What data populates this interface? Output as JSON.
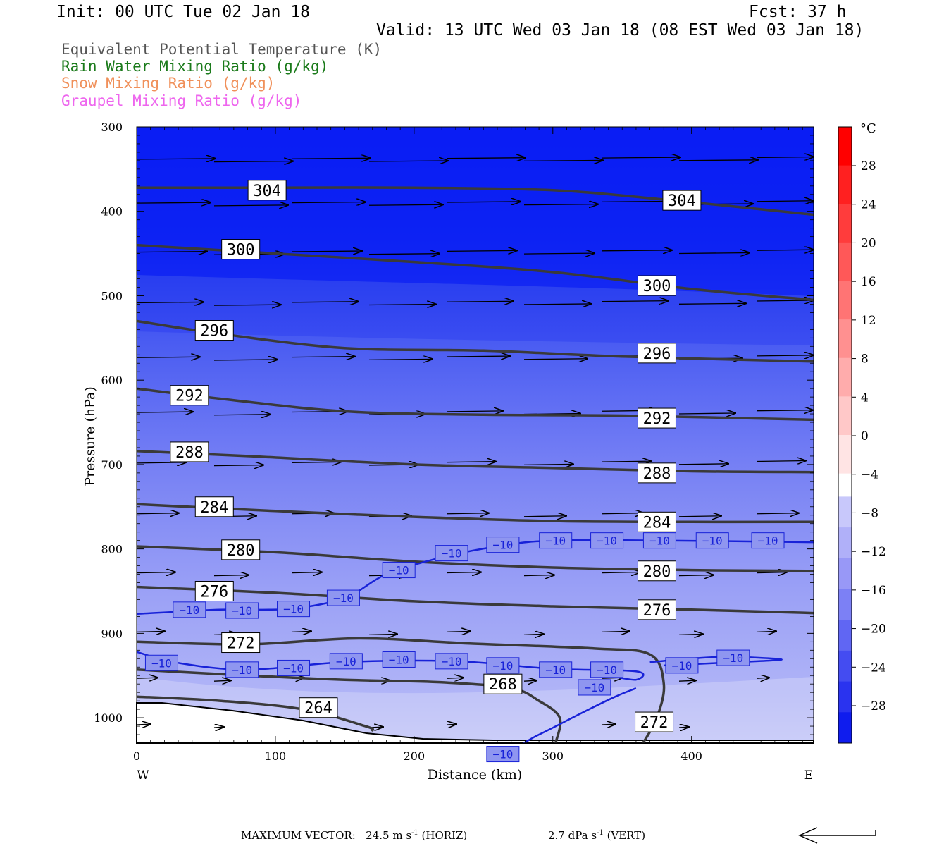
{
  "header": {
    "init": "Init: 00 UTC Tue 02 Jan 18",
    "fcst": "Fcst:   37 h",
    "valid": "Valid: 13 UTC Wed 03 Jan 18 (08 EST Wed 03 Jan 18)"
  },
  "legend": [
    {
      "text": "Equivalent Potential Temperature (K)",
      "color": "#555555"
    },
    {
      "text": "Rain Water Mixing Ratio (g/kg)",
      "color": "#1a7a1a"
    },
    {
      "text": "Snow Mixing Ratio (g/kg)",
      "color": "#f0905a"
    },
    {
      "text": "Graupel Mixing Ratio (g/kg)",
      "color": "#ee66ee"
    }
  ],
  "footer": {
    "max_vector_label": "MAXIMUM VECTOR:",
    "horiz_value": "24.5 m s",
    "horiz_exp": "-1",
    "horiz_tag": " (HORIZ)",
    "vert_value": "2.7 dPa s",
    "vert_exp": "-1",
    "vert_tag": " (VERT)"
  },
  "colorbar": {
    "unit": "°C",
    "labels": [
      "28",
      "24",
      "20",
      "16",
      "12",
      "8",
      "4",
      "0",
      "−4",
      "−8",
      "−12",
      "−16",
      "−20",
      "−24",
      "−28"
    ]
  },
  "chart_data": {
    "type": "cross-section",
    "xlabel": "Distance (km)",
    "ylabel": "Pressure (hPa)",
    "x_ticks": [
      0,
      100,
      200,
      300,
      400
    ],
    "y_ticks": [
      300,
      400,
      500,
      600,
      700,
      800,
      900,
      1000
    ],
    "xlim": [
      0,
      488
    ],
    "ylim": [
      1030,
      300
    ],
    "x_end_labels": {
      "left": "W",
      "right": "E"
    },
    "theta_e_contours": [
      {
        "label": "304",
        "points": [
          [
            0,
            372
          ],
          [
            100,
            372
          ],
          [
            200,
            372
          ],
          [
            300,
            375
          ],
          [
            380,
            386
          ],
          [
            488,
            404
          ]
        ],
        "label_at": [
          [
            94,
            375
          ],
          [
            393,
            387
          ]
        ]
      },
      {
        "label": "300",
        "points": [
          [
            0,
            440
          ],
          [
            100,
            450
          ],
          [
            200,
            460
          ],
          [
            300,
            472
          ],
          [
            400,
            492
          ],
          [
            488,
            505
          ]
        ],
        "label_at": [
          [
            75,
            445
          ],
          [
            375,
            488
          ]
        ]
      },
      {
        "label": "296",
        "points": [
          [
            0,
            530
          ],
          [
            60,
            545
          ],
          [
            150,
            562
          ],
          [
            250,
            565
          ],
          [
            350,
            572
          ],
          [
            488,
            578
          ]
        ],
        "label_at": [
          [
            56,
            541
          ],
          [
            375,
            568
          ]
        ]
      },
      {
        "label": "292",
        "points": [
          [
            0,
            610
          ],
          [
            60,
            622
          ],
          [
            150,
            637
          ],
          [
            250,
            641
          ],
          [
            350,
            642
          ],
          [
            488,
            647
          ]
        ],
        "label_at": [
          [
            38,
            618
          ],
          [
            375,
            645
          ]
        ]
      },
      {
        "label": "288",
        "points": [
          [
            0,
            684
          ],
          [
            80,
            690
          ],
          [
            200,
            700
          ],
          [
            300,
            704
          ],
          [
            400,
            708
          ],
          [
            488,
            709
          ]
        ],
        "label_at": [
          [
            38,
            685
          ],
          [
            375,
            710
          ]
        ]
      },
      {
        "label": "284",
        "points": [
          [
            0,
            747
          ],
          [
            100,
            755
          ],
          [
            200,
            762
          ],
          [
            300,
            767
          ],
          [
            400,
            768
          ],
          [
            488,
            768
          ]
        ],
        "label_at": [
          [
            56,
            750
          ],
          [
            375,
            768
          ]
        ]
      },
      {
        "label": "280",
        "points": [
          [
            0,
            797
          ],
          [
            100,
            804
          ],
          [
            200,
            815
          ],
          [
            300,
            822
          ],
          [
            400,
            825
          ],
          [
            488,
            826
          ]
        ],
        "label_at": [
          [
            75,
            801
          ],
          [
            375,
            826
          ]
        ]
      },
      {
        "label": "276",
        "points": [
          [
            0,
            845
          ],
          [
            100,
            852
          ],
          [
            200,
            862
          ],
          [
            300,
            868
          ],
          [
            400,
            872
          ],
          [
            488,
            876
          ]
        ],
        "label_at": [
          [
            56,
            850
          ],
          [
            375,
            872
          ]
        ]
      },
      {
        "label": "272",
        "points": [
          [
            0,
            910
          ],
          [
            80,
            913
          ],
          [
            160,
            906
          ],
          [
            240,
            912
          ],
          [
            330,
            918
          ],
          [
            370,
            925
          ],
          [
            380,
            960
          ],
          [
            375,
            1000
          ],
          [
            365,
            1030
          ]
        ],
        "label_at": [
          [
            75,
            911
          ],
          [
            373,
            1005
          ]
        ]
      },
      {
        "label": "268",
        "points": [
          [
            0,
            943
          ],
          [
            80,
            950
          ],
          [
            150,
            955
          ],
          [
            220,
            958
          ],
          [
            270,
            965
          ],
          [
            290,
            980
          ],
          [
            305,
            1000
          ],
          [
            302,
            1030
          ]
        ],
        "label_at": [
          [
            264,
            960
          ]
        ]
      },
      {
        "label": "264",
        "points": [
          [
            0,
            975
          ],
          [
            60,
            980
          ],
          [
            120,
            990
          ],
          [
            165,
            1010
          ],
          [
            170,
            1015
          ]
        ],
        "label_at": [
          [
            131,
            988
          ]
        ]
      }
    ],
    "temperature_minus10_labels": {
      "label": "−10",
      "points": [
        [
          38,
          872
        ],
        [
          76,
          873
        ],
        [
          113,
          871
        ],
        [
          149,
          858
        ],
        [
          189,
          825
        ],
        [
          227,
          805
        ],
        [
          264,
          795
        ],
        [
          302,
          790
        ],
        [
          339,
          790
        ],
        [
          377,
          790
        ],
        [
          415,
          790
        ],
        [
          455,
          790
        ],
        [
          18,
          935
        ],
        [
          76,
          943
        ],
        [
          113,
          941
        ],
        [
          151,
          933
        ],
        [
          189,
          931
        ],
        [
          227,
          933
        ],
        [
          264,
          938
        ],
        [
          302,
          943
        ],
        [
          339,
          943
        ],
        [
          330,
          964
        ],
        [
          393,
          938
        ],
        [
          430,
          929
        ],
        [
          264,
          1043
        ]
      ]
    }
  }
}
